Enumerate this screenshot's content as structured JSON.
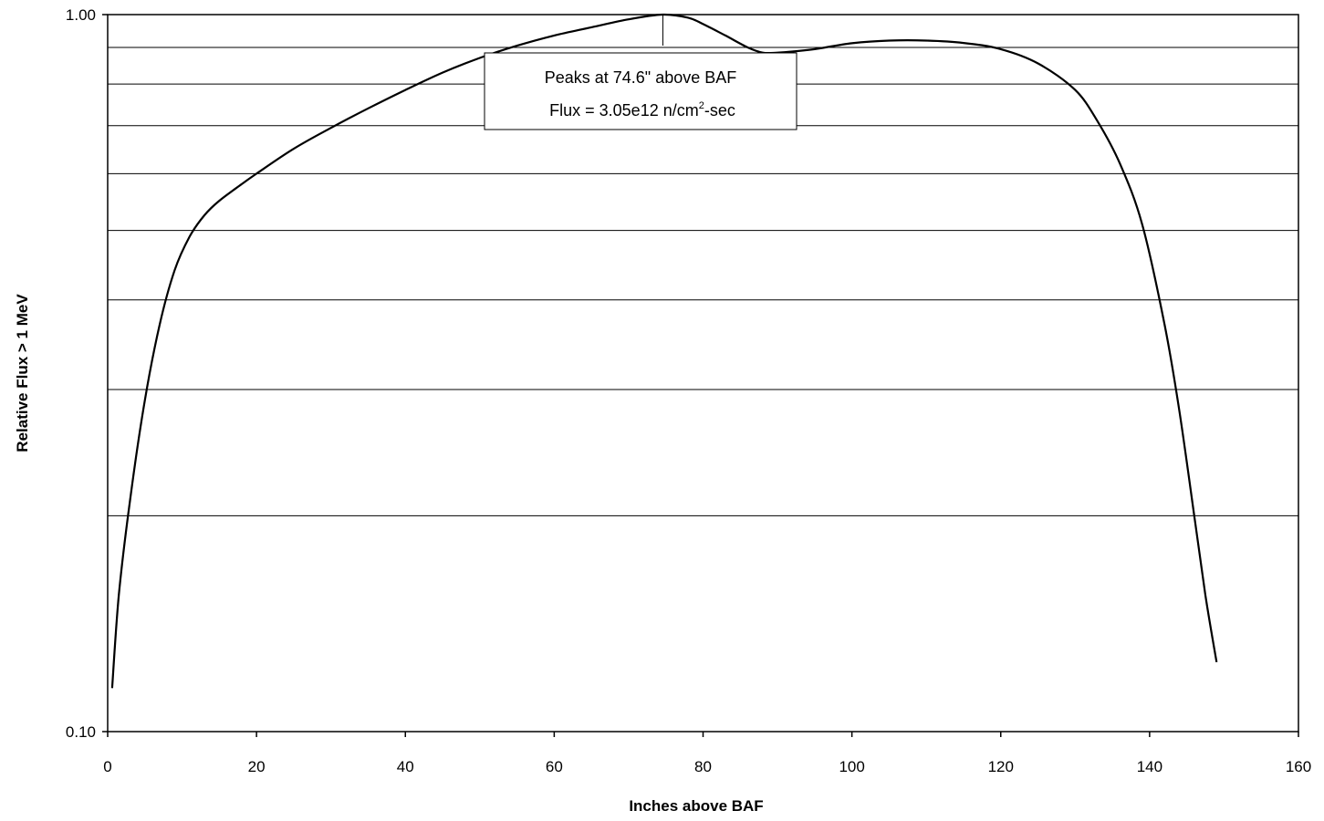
{
  "chart_data": {
    "type": "line",
    "xlabel": "Inches above BAF",
    "ylabel": "Relative Flux > 1 MeV",
    "xlim": [
      0,
      160
    ],
    "ylim": [
      0.1,
      1.0
    ],
    "yscale": "log",
    "grid": "horizontal",
    "x_ticks": [
      "0",
      "20",
      "40",
      "60",
      "80",
      "100",
      "120",
      "140",
      "160"
    ],
    "y_ticks": [
      "1.00",
      "0.10"
    ],
    "series": [
      {
        "x": [
          0.6,
          1.5,
          3,
          5,
          7,
          9,
          11,
          13,
          15,
          18,
          20,
          25,
          30,
          35,
          40,
          45,
          50,
          55,
          60,
          65,
          70,
          74.6,
          78,
          80,
          83,
          86,
          88,
          90,
          92,
          95,
          100,
          105,
          110,
          115,
          120,
          125,
          130,
          133,
          136,
          139,
          142,
          144,
          146,
          147.5,
          149
        ],
        "y": [
          0.115,
          0.155,
          0.21,
          0.29,
          0.37,
          0.44,
          0.49,
          0.525,
          0.55,
          0.58,
          0.6,
          0.65,
          0.695,
          0.74,
          0.785,
          0.83,
          0.87,
          0.905,
          0.935,
          0.96,
          0.985,
          1.0,
          0.99,
          0.97,
          0.935,
          0.9,
          0.885,
          0.885,
          0.888,
          0.895,
          0.912,
          0.92,
          0.92,
          0.913,
          0.895,
          0.855,
          0.785,
          0.71,
          0.62,
          0.51,
          0.37,
          0.28,
          0.2,
          0.155,
          0.125
        ]
      }
    ],
    "annotation": {
      "line1": "Peaks at 74.6\" above BAF",
      "line2_pre": "Flux = 3.05e12 n/cm",
      "line2_sup": "2",
      "line2_post": "-sec",
      "x": 74.6
    }
  }
}
